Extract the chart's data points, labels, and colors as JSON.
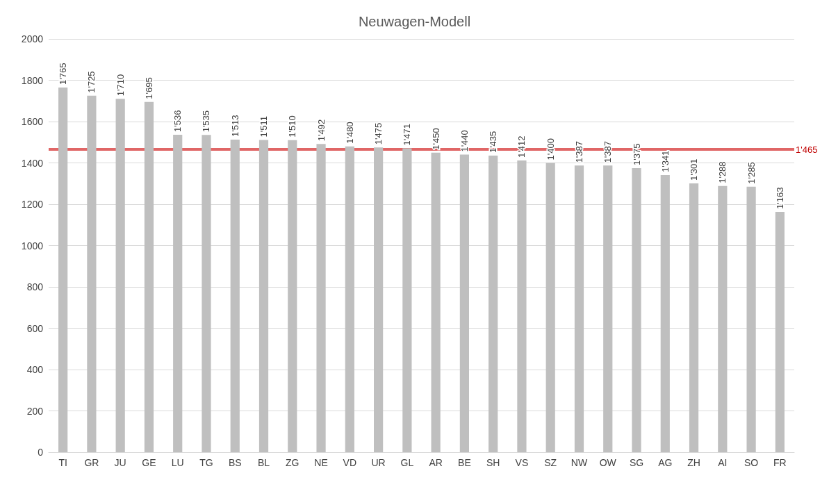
{
  "chart_data": {
    "type": "bar",
    "title": "Neuwagen-Modell",
    "categories": [
      "TI",
      "GR",
      "JU",
      "GE",
      "LU",
      "TG",
      "BS",
      "BL",
      "ZG",
      "NE",
      "VD",
      "UR",
      "GL",
      "AR",
      "BE",
      "SH",
      "VS",
      "SZ",
      "NW",
      "OW",
      "SG",
      "AG",
      "ZH",
      "AI",
      "SO",
      "FR"
    ],
    "values": [
      1765,
      1725,
      1710,
      1695,
      1536,
      1535,
      1513,
      1511,
      1510,
      1492,
      1480,
      1475,
      1471,
      1450,
      1440,
      1435,
      1412,
      1400,
      1387,
      1387,
      1375,
      1341,
      1301,
      1288,
      1285,
      1163
    ],
    "value_labels": [
      "1'765",
      "1'725",
      "1'710",
      "1'695",
      "1'536",
      "1'535",
      "1'513",
      "1'511",
      "1'510",
      "1'492",
      "1'480",
      "1'475",
      "1'471",
      "1'450",
      "1'440",
      "1'435",
      "1'412",
      "1'400",
      "1'387",
      "1'387",
      "1'375",
      "1'341",
      "1'301",
      "1'288",
      "1'285",
      "1'163"
    ],
    "color": "#bfbfbf",
    "ylim": [
      0,
      2000
    ],
    "yticks": [
      0,
      200,
      400,
      600,
      800,
      1000,
      1200,
      1400,
      1600,
      1800,
      2000
    ],
    "grid": "y",
    "ref_lines": [
      {
        "axis": "y",
        "value": 1465,
        "label": "1'465",
        "color": "#e06666"
      }
    ]
  }
}
